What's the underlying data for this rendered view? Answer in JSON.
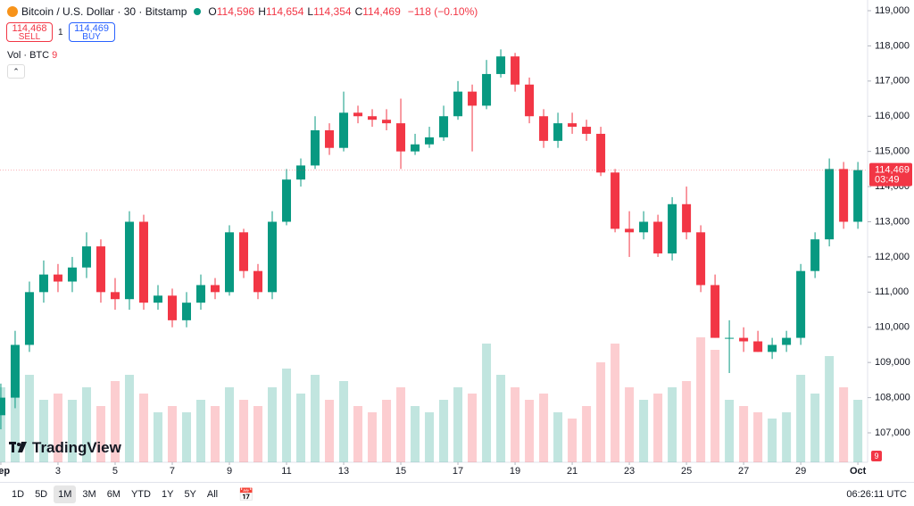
{
  "header": {
    "symbol": "Bitcoin / U.S. Dollar · 30 · Bitstamp",
    "ohlc": [
      {
        "key": "O",
        "value": "114,596"
      },
      {
        "key": "H",
        "value": "114,654"
      },
      {
        "key": "L",
        "value": "114,354"
      },
      {
        "key": "C",
        "value": "114,469"
      }
    ],
    "change": "−118 (−0.10%)",
    "sell_price": "114,468",
    "sell_label": "SELL",
    "quantity": "1",
    "buy_price": "114,469",
    "buy_label": "BUY",
    "volume_legend": "Vol · BTC",
    "volume_last": "9",
    "logo": "TradingView",
    "badge": "9"
  },
  "chart_data": {
    "type": "candlestick",
    "up_color": "#089981",
    "down_color": "#f23645",
    "grid": false,
    "x": [
      1,
      1.5,
      2,
      2.5,
      3,
      3.5,
      4,
      4.5,
      5,
      5.5,
      6,
      6.5,
      7,
      7.5,
      8,
      8.5,
      9,
      9.5,
      10,
      10.5,
      11,
      11.5,
      12,
      12.5,
      13,
      13.5,
      14,
      14.5,
      15,
      15.5,
      16,
      16.5,
      17,
      17.5,
      18,
      18.5,
      19,
      19.5,
      20,
      20.5,
      21,
      21.5,
      22,
      22.5,
      23,
      23.5,
      24,
      24.5,
      25,
      25.5,
      26,
      26.5,
      27,
      27.5,
      28,
      28.5,
      29,
      29.5,
      30,
      30.5,
      31
    ],
    "open": [
      107500,
      108000,
      109500,
      111000,
      111500,
      111300,
      111700,
      112300,
      111000,
      110800,
      113000,
      110700,
      110900,
      110200,
      110700,
      111200,
      111000,
      112700,
      111600,
      111000,
      113000,
      114200,
      114600,
      115600,
      115100,
      116100,
      116000,
      115900,
      115800,
      115000,
      115200,
      115400,
      116000,
      116700,
      116300,
      117200,
      117700,
      116900,
      116000,
      115300,
      115800,
      115700,
      115500,
      114400,
      112800,
      112700,
      113000,
      112100,
      113500,
      112700,
      111200,
      109700,
      109700,
      109600,
      109300,
      109500,
      109700,
      111600,
      112500,
      114500,
      113000
    ],
    "high": [
      108400,
      109900,
      111300,
      111900,
      111800,
      112000,
      112700,
      112500,
      111400,
      113300,
      113200,
      111200,
      111100,
      111000,
      111500,
      111400,
      112900,
      112800,
      111800,
      113300,
      114500,
      114800,
      116000,
      115800,
      116700,
      116300,
      116200,
      116200,
      116500,
      115500,
      115700,
      116300,
      117000,
      116900,
      117600,
      117900,
      117800,
      117100,
      116200,
      116100,
      116100,
      115900,
      115700,
      114500,
      113300,
      113300,
      113200,
      113700,
      114000,
      112900,
      111500,
      110200,
      110000,
      109900,
      109700,
      109900,
      111800,
      112700,
      114800,
      114700,
      114700
    ],
    "low": [
      107100,
      107700,
      109300,
      110700,
      111000,
      111000,
      111400,
      110700,
      110500,
      110500,
      110500,
      110500,
      110000,
      110000,
      110500,
      110800,
      110900,
      111400,
      110800,
      110800,
      112900,
      114000,
      114500,
      114900,
      115000,
      115800,
      115700,
      115600,
      114500,
      114900,
      115100,
      115300,
      115900,
      115000,
      116200,
      117100,
      116700,
      115800,
      115100,
      115100,
      115500,
      115300,
      114300,
      112700,
      112000,
      112500,
      112000,
      111900,
      112500,
      111000,
      109700,
      108700,
      109300,
      109300,
      109100,
      109300,
      109500,
      111400,
      112300,
      112800,
      112800
    ],
    "close": [
      108000,
      109500,
      111000,
      111500,
      111300,
      111700,
      112300,
      111000,
      110800,
      113000,
      110700,
      110900,
      110200,
      110700,
      111200,
      111000,
      112700,
      111600,
      111000,
      113000,
      114200,
      114600,
      115600,
      115100,
      116100,
      116000,
      115900,
      115800,
      115000,
      115200,
      115400,
      116000,
      116700,
      116300,
      117200,
      117700,
      116900,
      116000,
      115300,
      115800,
      115700,
      115500,
      114400,
      112800,
      112700,
      113000,
      112100,
      113500,
      112700,
      111200,
      109700,
      109700,
      109600,
      109300,
      109500,
      109700,
      111600,
      112500,
      114500,
      113000,
      114469
    ],
    "volume": [
      60,
      90,
      70,
      50,
      55,
      50,
      60,
      45,
      65,
      70,
      55,
      40,
      45,
      40,
      50,
      45,
      60,
      50,
      45,
      60,
      75,
      55,
      70,
      50,
      65,
      45,
      40,
      50,
      60,
      45,
      40,
      50,
      60,
      55,
      95,
      70,
      60,
      50,
      55,
      40,
      35,
      45,
      80,
      95,
      60,
      50,
      55,
      60,
      65,
      100,
      90,
      50,
      45,
      40,
      35,
      40,
      70,
      55,
      85,
      60,
      50
    ],
    "xlim": [
      0.97,
      31.34
    ],
    "xticks": [
      {
        "value": 1,
        "label": "Sep"
      },
      3,
      5,
      7,
      9,
      11,
      13,
      15,
      17,
      19,
      21,
      23,
      25,
      27,
      29,
      {
        "value": 31,
        "label": "Oct"
      }
    ],
    "ylim": [
      106163,
      119304
    ],
    "yticks": [
      {
        "value": 107000,
        "label": "107,000"
      },
      {
        "value": 108000,
        "label": "108,000"
      },
      {
        "value": 109000,
        "label": "109,000"
      },
      {
        "value": 110000,
        "label": "110,000"
      },
      {
        "value": 111000,
        "label": "111,000"
      },
      {
        "value": 112000,
        "label": "112,000"
      },
      {
        "value": 113000,
        "label": "113,000"
      },
      {
        "value": 114000,
        "label": "114,000"
      },
      {
        "value": 115000,
        "label": "115,000"
      },
      {
        "value": 116000,
        "label": "116,000"
      },
      {
        "value": 117000,
        "label": "117,000"
      },
      {
        "value": 118000,
        "label": "118,000"
      },
      {
        "value": 119000,
        "label": "119,000"
      }
    ],
    "last_price": {
      "value": 114469,
      "label": "114,469"
    },
    "countdown": "03:49"
  },
  "toolbar": {
    "ranges": [
      "1D",
      "5D",
      "1M",
      "3M",
      "6M",
      "YTD",
      "1Y",
      "5Y",
      "All"
    ],
    "active": 2,
    "clock": "06:26:11 UTC"
  }
}
